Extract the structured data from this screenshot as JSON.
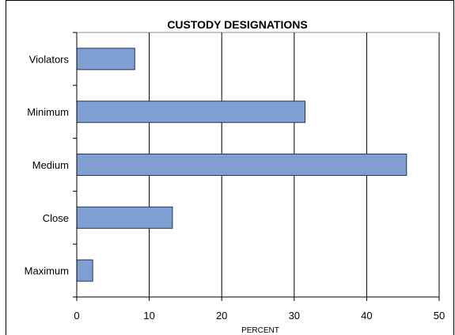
{
  "chart_data": {
    "type": "bar",
    "orientation": "horizontal",
    "title": "CUSTODY DESIGNATIONS",
    "xlabel": "PERCENT",
    "ylabel": "",
    "categories": [
      "Violators",
      "Minimum",
      "Medium",
      "Close",
      "Maximum"
    ],
    "values": [
      8,
      31.5,
      45.5,
      13.2,
      2.2
    ],
    "xlim": [
      0,
      50
    ],
    "x_ticks": [
      "0",
      "10",
      "20",
      "30",
      "40",
      "50"
    ],
    "grid": true,
    "legend": "none",
    "colors": {
      "bar": "#7f9fd3",
      "bar_edge": "#26344f",
      "grid": "#000000"
    }
  }
}
